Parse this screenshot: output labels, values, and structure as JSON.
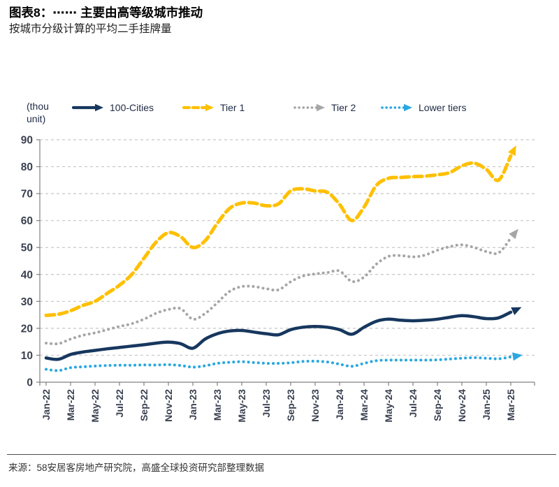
{
  "header": {
    "title": "图表8：⋯⋯ 主要由高等级城市推动",
    "subtitle": "按城市分级计算的平均二手挂牌量"
  },
  "footer": {
    "source": "来源：58安居客房地产研究院，高盛全球投资研究部整理数据"
  },
  "chart_data": {
    "type": "line",
    "unit_label": "(thou\nunit)",
    "x": [
      "Jan-22",
      "Feb-22",
      "Mar-22",
      "Apr-22",
      "May-22",
      "Jun-22",
      "Jul-22",
      "Aug-22",
      "Sep-22",
      "Oct-22",
      "Nov-22",
      "Dec-22",
      "Jan-23",
      "Feb-23",
      "Mar-23",
      "Apr-23",
      "May-23",
      "Jun-23",
      "Jul-23",
      "Aug-23",
      "Sep-23",
      "Oct-23",
      "Nov-23",
      "Dec-23",
      "Jan-24",
      "Feb-24",
      "Mar-24",
      "Apr-24",
      "May-24",
      "Jun-24",
      "Jul-24",
      "Aug-24",
      "Sep-24",
      "Oct-24",
      "Nov-24",
      "Dec-24",
      "Jan-25",
      "Feb-25",
      "Mar-25"
    ],
    "x_tick_labels": [
      "Jan-22",
      "Mar-22",
      "May-22",
      "Jul-22",
      "Sep-22",
      "Nov-22",
      "Jan-23",
      "Mar-23",
      "May-23",
      "Jul-23",
      "Sep-23",
      "Nov-23",
      "Jan-24",
      "Mar-24",
      "May-24",
      "Jul-24",
      "Sep-24",
      "Nov-24",
      "Jan-25",
      "Mar-25"
    ],
    "x_tick_step": 2,
    "ylim": [
      0,
      90
    ],
    "y_ticks": [
      0,
      10,
      20,
      30,
      40,
      50,
      60,
      70,
      80,
      90
    ],
    "grid": "horizontal-dashed",
    "legend_position": "top",
    "series": [
      {
        "name": "100-Cities",
        "color": "#17375E",
        "style": "solid",
        "values": [
          9,
          8.5,
          10.3,
          11.2,
          11.8,
          12.4,
          12.9,
          13.4,
          13.9,
          14.5,
          14.9,
          14.3,
          12.6,
          16,
          18,
          19,
          19.2,
          18.6,
          18,
          17.6,
          19.5,
          20.4,
          20.7,
          20.4,
          19.5,
          17.8,
          20.4,
          22.6,
          23.4,
          23,
          22.8,
          23,
          23.4,
          24.1,
          24.7,
          24.3,
          23.6,
          23.9,
          26
        ]
      },
      {
        "name": "Tier 1",
        "color": "#FFC000",
        "style": "dashed",
        "values": [
          24.8,
          25.2,
          26.5,
          28.5,
          30,
          33,
          36,
          40,
          46,
          52,
          55.5,
          54,
          50,
          52.5,
          59,
          64.5,
          66.5,
          66.5,
          65.5,
          66.2,
          71,
          71.8,
          71,
          70.5,
          66,
          60,
          65,
          73,
          75.7,
          76,
          76.3,
          76.5,
          77,
          77.8,
          80.3,
          81.3,
          79,
          75,
          84
        ]
      },
      {
        "name": "Tier 2",
        "color": "#A6A6A6",
        "style": "dotted",
        "values": [
          14.5,
          14.3,
          16,
          17.4,
          18.3,
          19.5,
          20.7,
          21.7,
          23.4,
          25.6,
          27,
          27.3,
          23.4,
          25.5,
          29.5,
          33.7,
          35.5,
          35.5,
          34.7,
          34.3,
          37.3,
          39.4,
          40.2,
          40.7,
          41.3,
          37.4,
          39,
          43.8,
          46.7,
          47,
          46.5,
          47.2,
          49,
          50.3,
          51,
          50,
          48.5,
          48,
          53.5
        ]
      },
      {
        "name": "Lower tiers",
        "color": "#29A8E0",
        "style": "dotted",
        "values": [
          4.8,
          4.3,
          5.4,
          5.7,
          6,
          6.2,
          6.3,
          6.3,
          6.4,
          6.4,
          6.5,
          6.2,
          5.6,
          6.1,
          7,
          7.4,
          7.6,
          7.3,
          7,
          7,
          7.2,
          7.7,
          7.8,
          7.5,
          6.7,
          5.9,
          7,
          8,
          8.2,
          8.2,
          8.2,
          8.2,
          8.3,
          8.6,
          8.9,
          9.1,
          8.9,
          8.7,
          9.4
        ]
      }
    ],
    "axis_color": "#808080",
    "gridline_color": "#c6c6c6",
    "tick_label_color": "#39404f"
  }
}
